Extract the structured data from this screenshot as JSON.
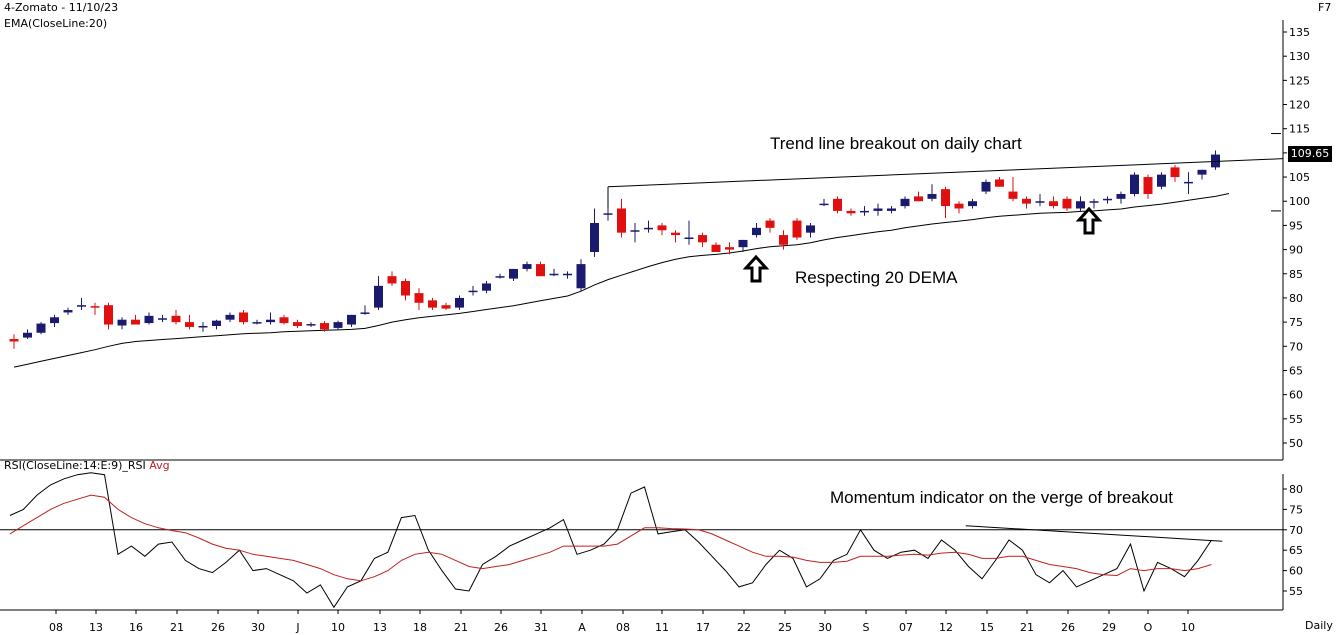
{
  "header": {
    "title": "4-Zomato - 11/10/23",
    "indicator": "EMA(CloseLine:20)",
    "shortcut": "F7"
  },
  "rsi_header": {
    "label": "RSI(CloseLine:14:E:9)_RSI",
    "avg_label": "Avg",
    "avg_color": "#c02020"
  },
  "footer": {
    "timeframe": "Daily"
  },
  "annotations": {
    "trendline": "Trend line breakout on daily chart",
    "dema": "Respecting 20 DEMA",
    "momentum": "Momentum indicator on the verge of breakout"
  },
  "last_price": "109.65",
  "colors": {
    "up": "#1a1a6e",
    "down": "#e01010",
    "ema": "#000000",
    "rsi": "#000000",
    "rsi_avg": "#c02020"
  },
  "chart_data": [
    {
      "type": "candlestick",
      "title": "4-Zomato - 11/10/23",
      "ylim": [
        45,
        137
      ],
      "yticks": [
        50,
        55,
        60,
        65,
        70,
        75,
        80,
        85,
        90,
        95,
        100,
        105,
        110,
        115,
        120,
        125,
        130,
        135
      ],
      "x_tick_labels": [
        "08",
        "13",
        "16",
        "21",
        "26",
        "30",
        "J",
        "10",
        "13",
        "18",
        "21",
        "26",
        "31",
        "A",
        "08",
        "11",
        "17",
        "22",
        "25",
        "30",
        "S",
        "07",
        "12",
        "15",
        "21",
        "26",
        "29",
        "O",
        "10"
      ],
      "candles": [
        {
          "o": 71.5,
          "h": 72.5,
          "l": 69.5,
          "c": 71.0
        },
        {
          "o": 71.8,
          "h": 73.5,
          "l": 71.5,
          "c": 72.8
        },
        {
          "o": 72.8,
          "h": 75.0,
          "l": 72.5,
          "c": 74.7
        },
        {
          "o": 74.8,
          "h": 76.5,
          "l": 74.0,
          "c": 76.0
        },
        {
          "o": 77.0,
          "h": 78.0,
          "l": 76.5,
          "c": 77.5
        },
        {
          "o": 78.3,
          "h": 80.0,
          "l": 77.5,
          "c": 78.5
        },
        {
          "o": 78.3,
          "h": 79.0,
          "l": 76.5,
          "c": 78.0
        },
        {
          "o": 78.5,
          "h": 79.0,
          "l": 73.5,
          "c": 74.5
        },
        {
          "o": 74.3,
          "h": 76.0,
          "l": 73.5,
          "c": 75.5
        },
        {
          "o": 75.5,
          "h": 76.5,
          "l": 74.5,
          "c": 74.5
        },
        {
          "o": 74.8,
          "h": 77.0,
          "l": 74.5,
          "c": 76.3
        },
        {
          "o": 75.8,
          "h": 76.5,
          "l": 75.0,
          "c": 75.8
        },
        {
          "o": 76.3,
          "h": 77.5,
          "l": 74.5,
          "c": 75.0
        },
        {
          "o": 75.0,
          "h": 76.5,
          "l": 73.5,
          "c": 74.0
        },
        {
          "o": 74.2,
          "h": 75.0,
          "l": 73.0,
          "c": 74.2
        },
        {
          "o": 74.2,
          "h": 75.5,
          "l": 73.5,
          "c": 75.3
        },
        {
          "o": 75.5,
          "h": 77.0,
          "l": 75.0,
          "c": 76.5
        },
        {
          "o": 77.0,
          "h": 77.5,
          "l": 74.5,
          "c": 75.0
        },
        {
          "o": 75.0,
          "h": 75.5,
          "l": 74.5,
          "c": 75.0
        },
        {
          "o": 75.0,
          "h": 77.0,
          "l": 74.5,
          "c": 75.5
        },
        {
          "o": 76.0,
          "h": 76.5,
          "l": 74.5,
          "c": 74.8
        },
        {
          "o": 75.0,
          "h": 75.5,
          "l": 73.8,
          "c": 74.2
        },
        {
          "o": 74.6,
          "h": 75.0,
          "l": 74.0,
          "c": 74.6
        },
        {
          "o": 74.8,
          "h": 75.2,
          "l": 73.0,
          "c": 73.5
        },
        {
          "o": 73.8,
          "h": 75.3,
          "l": 73.5,
          "c": 75.0
        },
        {
          "o": 74.5,
          "h": 76.5,
          "l": 74.0,
          "c": 76.5
        },
        {
          "o": 77.0,
          "h": 78.5,
          "l": 76.5,
          "c": 77.0
        },
        {
          "o": 78.0,
          "h": 84.5,
          "l": 77.5,
          "c": 82.5
        },
        {
          "o": 84.5,
          "h": 85.5,
          "l": 82.5,
          "c": 83.0
        },
        {
          "o": 83.5,
          "h": 84.0,
          "l": 79.5,
          "c": 80.5
        },
        {
          "o": 81.0,
          "h": 82.0,
          "l": 77.5,
          "c": 79.0
        },
        {
          "o": 79.5,
          "h": 80.0,
          "l": 77.5,
          "c": 78.0
        },
        {
          "o": 78.5,
          "h": 79.0,
          "l": 77.5,
          "c": 77.8
        },
        {
          "o": 78.0,
          "h": 80.5,
          "l": 77.5,
          "c": 80.0
        },
        {
          "o": 81.5,
          "h": 82.5,
          "l": 80.5,
          "c": 81.5
        },
        {
          "o": 81.5,
          "h": 83.5,
          "l": 81.0,
          "c": 83.0
        },
        {
          "o": 84.5,
          "h": 85.0,
          "l": 84.0,
          "c": 84.5
        },
        {
          "o": 84.0,
          "h": 86.0,
          "l": 83.5,
          "c": 86.0
        },
        {
          "o": 86.0,
          "h": 87.5,
          "l": 85.5,
          "c": 87.0
        },
        {
          "o": 87.0,
          "h": 87.5,
          "l": 84.5,
          "c": 84.5
        },
        {
          "o": 85.0,
          "h": 86.0,
          "l": 84.5,
          "c": 85.0
        },
        {
          "o": 85.0,
          "h": 85.5,
          "l": 84.0,
          "c": 85.0
        },
        {
          "o": 82.0,
          "h": 88.0,
          "l": 81.5,
          "c": 87.0
        },
        {
          "o": 89.5,
          "h": 98.5,
          "l": 88.5,
          "c": 95.5
        },
        {
          "o": 97.5,
          "h": 100.0,
          "l": 96.0,
          "c": 97.5
        },
        {
          "o": 98.5,
          "h": 100.5,
          "l": 92.5,
          "c": 93.5
        },
        {
          "o": 94.0,
          "h": 95.5,
          "l": 91.5,
          "c": 94.0
        },
        {
          "o": 94.5,
          "h": 96.0,
          "l": 93.5,
          "c": 94.5
        },
        {
          "o": 95.0,
          "h": 95.5,
          "l": 93.0,
          "c": 94.0
        },
        {
          "o": 93.5,
          "h": 94.0,
          "l": 91.5,
          "c": 93.0
        },
        {
          "o": 92.5,
          "h": 96.0,
          "l": 91.0,
          "c": 92.5
        },
        {
          "o": 93.0,
          "h": 93.5,
          "l": 90.5,
          "c": 91.5
        },
        {
          "o": 91.0,
          "h": 91.5,
          "l": 89.5,
          "c": 89.5
        },
        {
          "o": 90.5,
          "h": 91.5,
          "l": 89.0,
          "c": 90.0
        },
        {
          "o": 90.5,
          "h": 92.0,
          "l": 89.5,
          "c": 92.0
        },
        {
          "o": 93.0,
          "h": 95.5,
          "l": 92.5,
          "c": 94.5
        },
        {
          "o": 96.0,
          "h": 96.5,
          "l": 93.5,
          "c": 94.5
        },
        {
          "o": 93.0,
          "h": 94.0,
          "l": 90.0,
          "c": 91.0
        },
        {
          "o": 96.0,
          "h": 96.5,
          "l": 92.0,
          "c": 92.5
        },
        {
          "o": 93.5,
          "h": 95.5,
          "l": 92.5,
          "c": 95.0
        },
        {
          "o": 99.5,
          "h": 100.5,
          "l": 99.0,
          "c": 99.5
        },
        {
          "o": 100.5,
          "h": 101.0,
          "l": 97.5,
          "c": 98.0
        },
        {
          "o": 98.0,
          "h": 98.5,
          "l": 97.0,
          "c": 97.5
        },
        {
          "o": 98.0,
          "h": 99.0,
          "l": 97.0,
          "c": 98.0
        },
        {
          "o": 98.0,
          "h": 99.5,
          "l": 97.0,
          "c": 98.5
        },
        {
          "o": 98.0,
          "h": 99.0,
          "l": 97.5,
          "c": 98.5
        },
        {
          "o": 99.0,
          "h": 101.0,
          "l": 98.5,
          "c": 100.5
        },
        {
          "o": 101.0,
          "h": 102.0,
          "l": 100.0,
          "c": 100.0
        },
        {
          "o": 100.5,
          "h": 103.5,
          "l": 100.0,
          "c": 101.5
        },
        {
          "o": 102.5,
          "h": 103.0,
          "l": 96.5,
          "c": 99.0
        },
        {
          "o": 99.5,
          "h": 100.0,
          "l": 97.5,
          "c": 98.5
        },
        {
          "o": 99.0,
          "h": 100.5,
          "l": 98.5,
          "c": 100.0
        },
        {
          "o": 102.0,
          "h": 104.5,
          "l": 101.5,
          "c": 104.0
        },
        {
          "o": 104.5,
          "h": 105.0,
          "l": 103.0,
          "c": 103.0
        },
        {
          "o": 102.0,
          "h": 105.0,
          "l": 100.0,
          "c": 100.5
        },
        {
          "o": 100.5,
          "h": 101.0,
          "l": 98.5,
          "c": 99.5
        },
        {
          "o": 100.0,
          "h": 101.5,
          "l": 99.0,
          "c": 100.0
        },
        {
          "o": 100.0,
          "h": 101.0,
          "l": 98.5,
          "c": 99.0
        },
        {
          "o": 100.5,
          "h": 101.0,
          "l": 98.0,
          "c": 98.5
        },
        {
          "o": 98.5,
          "h": 101.0,
          "l": 98.0,
          "c": 100.0
        },
        {
          "o": 100.0,
          "h": 100.5,
          "l": 98.5,
          "c": 100.0
        },
        {
          "o": 100.5,
          "h": 101.0,
          "l": 99.5,
          "c": 100.5
        },
        {
          "o": 100.5,
          "h": 102.0,
          "l": 99.5,
          "c": 101.5
        },
        {
          "o": 101.5,
          "h": 106.0,
          "l": 101.0,
          "c": 105.5
        },
        {
          "o": 105.0,
          "h": 105.5,
          "l": 100.5,
          "c": 101.5
        },
        {
          "o": 103.0,
          "h": 106.0,
          "l": 102.5,
          "c": 105.5
        },
        {
          "o": 107.0,
          "h": 107.5,
          "l": 104.0,
          "c": 105.0
        },
        {
          "o": 104.0,
          "h": 106.0,
          "l": 101.5,
          "c": 104.0
        },
        {
          "o": 105.5,
          "h": 106.5,
          "l": 104.5,
          "c": 106.5
        },
        {
          "o": 107.0,
          "h": 110.5,
          "l": 106.5,
          "c": 109.65
        }
      ],
      "ema": [
        65.7,
        66.3,
        66.9,
        67.5,
        68.1,
        68.7,
        69.3,
        70.0,
        70.6,
        71.0,
        71.2,
        71.4,
        71.6,
        71.8,
        72.0,
        72.2,
        72.4,
        72.6,
        72.7,
        72.8,
        73.0,
        73.1,
        73.2,
        73.3,
        73.4,
        73.5,
        73.7,
        74.3,
        75.0,
        75.5,
        75.9,
        76.2,
        76.5,
        76.8,
        77.2,
        77.6,
        78.0,
        78.4,
        78.9,
        79.4,
        79.9,
        80.4,
        81.4,
        82.7,
        83.8,
        84.7,
        85.6,
        86.5,
        87.3,
        88.0,
        88.5,
        88.8,
        89.0,
        89.3,
        89.7,
        90.2,
        90.6,
        90.8,
        91.0,
        91.4,
        92.0,
        92.5,
        92.9,
        93.3,
        93.7,
        94.0,
        94.5,
        94.9,
        95.3,
        95.6,
        95.9,
        96.2,
        96.6,
        96.9,
        97.1,
        97.3,
        97.5,
        97.6,
        97.7,
        97.9,
        98.0,
        98.2,
        98.4,
        98.8,
        99.1,
        99.4,
        99.8,
        100.2,
        100.6,
        101.0,
        101.6
      ],
      "trendline": {
        "from": [
          97.5,
          103.0
        ],
        "to": [
          109.65,
          108.8
        ]
      },
      "ylabel": ""
    },
    {
      "type": "line",
      "title": "RSI(CloseLine:14:E:9)_RSI",
      "ylim": [
        48,
        86
      ],
      "yticks": [
        55,
        60,
        65,
        70,
        75,
        80
      ],
      "reference_line": 70,
      "series": [
        {
          "name": "RSI(CloseLine:14:E:9)_RSI",
          "values": [
            73.5,
            75.0,
            78.5,
            81.0,
            82.5,
            83.5,
            84.0,
            83.5,
            64.0,
            66.0,
            63.5,
            66.5,
            67.0,
            62.5,
            60.5,
            59.5,
            62.0,
            65.0,
            60.0,
            60.5,
            59.0,
            57.5,
            54.5,
            56.5,
            51.0,
            56.0,
            57.5,
            63.0,
            64.5,
            73.0,
            73.5,
            65.0,
            60.0,
            55.5,
            55.0,
            61.5,
            63.5,
            66.0,
            67.5,
            69.0,
            70.5,
            72.5,
            64.0,
            65.0,
            66.5,
            70.0,
            79.0,
            80.5,
            69.0,
            69.5,
            70.0,
            67.0,
            63.5,
            60.0,
            56.0,
            57.0,
            61.5,
            65.0,
            63.0,
            56.0,
            58.0,
            62.5,
            64.0,
            70.0,
            65.0,
            63.0,
            64.5,
            65.0,
            63.0,
            67.5,
            65.0,
            61.0,
            58.0,
            62.5,
            67.5,
            65.0,
            59.0,
            57.0,
            60.0,
            56.0,
            57.5,
            59.0,
            60.5,
            66.5,
            55.0,
            62.0,
            60.5,
            58.5,
            62.5,
            67.5
          ]
        },
        {
          "name": "Avg",
          "values": [
            69.0,
            71.0,
            73.0,
            75.0,
            76.5,
            77.5,
            78.5,
            78.0,
            75.0,
            73.0,
            71.5,
            70.5,
            69.8,
            69.3,
            68.0,
            66.5,
            65.5,
            65.0,
            64.0,
            63.5,
            63.0,
            62.5,
            61.5,
            60.5,
            59.0,
            58.0,
            57.5,
            58.5,
            60.0,
            62.5,
            64.0,
            64.5,
            64.0,
            62.5,
            61.0,
            60.5,
            61.0,
            61.5,
            62.5,
            63.5,
            64.5,
            66.0,
            66.0,
            66.0,
            66.0,
            66.5,
            68.5,
            70.5,
            70.5,
            70.3,
            70.2,
            70.0,
            69.0,
            67.5,
            66.0,
            64.5,
            63.5,
            63.5,
            63.3,
            62.5,
            62.0,
            62.0,
            62.3,
            63.5,
            63.5,
            63.5,
            63.8,
            64.0,
            63.8,
            64.3,
            64.5,
            64.0,
            63.0,
            63.0,
            63.5,
            63.5,
            62.5,
            61.5,
            61.0,
            60.5,
            59.5,
            59.0,
            58.8,
            60.5,
            60.0,
            60.5,
            60.5,
            60.0,
            60.5,
            61.5
          ]
        }
      ],
      "trendline": {
        "from": [
          70.5,
          71.0
        ],
        "to": [
          89.5,
          67.2
        ]
      },
      "ylabel": ""
    }
  ]
}
